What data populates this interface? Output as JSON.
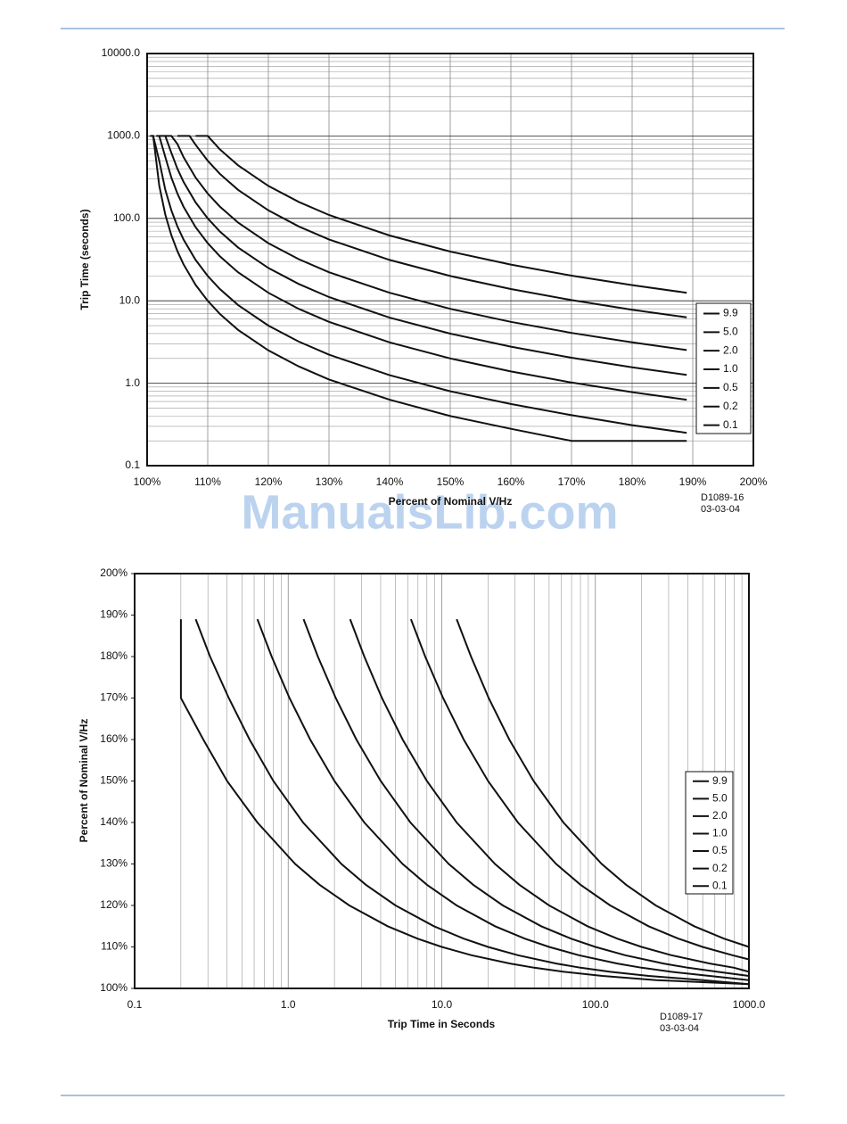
{
  "watermark": "ManualsLib.com",
  "chart_data": [
    {
      "type": "line",
      "xscale": "linear",
      "yscale": "log",
      "xgrid": true,
      "ygrid": true,
      "minor_grid": true,
      "legend": "right",
      "color": "#111111",
      "xlabel": "Percent of Nominal V/Hz",
      "ylabel": "Trip Time (seconds)",
      "annotations": [
        "D1089-16",
        "03-03-04"
      ],
      "xlim": [
        100,
        200
      ],
      "xticks": [
        {
          "value": 100,
          "label": "100%"
        },
        {
          "value": 110,
          "label": "110%"
        },
        {
          "value": 120,
          "label": "120%"
        },
        {
          "value": 130,
          "label": "130%"
        },
        {
          "value": 140,
          "label": "140%"
        },
        {
          "value": 150,
          "label": "150%"
        },
        {
          "value": 160,
          "label": "160%"
        },
        {
          "value": 170,
          "label": "170%"
        },
        {
          "value": 180,
          "label": "180%"
        },
        {
          "value": 190,
          "label": "190%"
        },
        {
          "value": 200,
          "label": "200%"
        }
      ],
      "ylim": [
        0.1,
        10000
      ],
      "yticks": [
        0.1,
        {
          "value": 1,
          "label": "1.0"
        },
        {
          "value": 10,
          "label": "10.0"
        },
        {
          "value": 100,
          "label": "100.0"
        },
        {
          "value": 1000,
          "label": "1000.0"
        },
        {
          "value": 10000,
          "label": "10000.0"
        }
      ],
      "series": [
        {
          "name": "9.9",
          "x": [
            108,
            110,
            112,
            115,
            120,
            125,
            130,
            140,
            150,
            160,
            170,
            180,
            189
          ],
          "values": [
            1000,
            1000,
            687.5,
            440,
            247.5,
            158.4,
            110,
            61.9,
            39.6,
            27.5,
            20.2,
            15.5,
            12.5
          ]
        },
        {
          "name": "5.0",
          "x": [
            105,
            107,
            108,
            110,
            112,
            115,
            120,
            125,
            130,
            140,
            150,
            160,
            170,
            180,
            189
          ],
          "values": [
            1000,
            1000,
            781,
            500,
            347,
            222,
            125,
            80,
            55.6,
            31.3,
            20,
            13.9,
            10.2,
            7.8,
            6.3
          ]
        },
        {
          "name": "2.0",
          "x": [
            103,
            104,
            105,
            106,
            108,
            110,
            112,
            115,
            120,
            125,
            130,
            140,
            150,
            160,
            170,
            180,
            189
          ],
          "values": [
            1000,
            1000,
            800,
            556,
            312.5,
            200,
            138.9,
            88.9,
            50,
            32,
            22.2,
            12.5,
            8,
            5.56,
            4.08,
            3.13,
            2.53
          ]
        },
        {
          "name": "1.0",
          "x": [
            102,
            103,
            104,
            105,
            106,
            108,
            110,
            112,
            115,
            120,
            125,
            130,
            140,
            150,
            160,
            170,
            180,
            189
          ],
          "values": [
            1000,
            1000,
            625,
            400,
            277.8,
            156.3,
            100,
            69.4,
            44.4,
            25,
            16,
            11.1,
            6.25,
            4,
            2.78,
            2.04,
            1.56,
            1.26
          ]
        },
        {
          "name": "0.5",
          "x": [
            101.5,
            102,
            103,
            104,
            105,
            106,
            108,
            110,
            112,
            115,
            120,
            125,
            130,
            140,
            150,
            160,
            170,
            180,
            189
          ],
          "values": [
            1000,
            1000,
            555.6,
            312.5,
            200,
            138.9,
            78.1,
            50,
            34.7,
            22.2,
            12.5,
            8,
            5.56,
            3.13,
            2,
            1.39,
            1.02,
            0.78,
            0.63
          ]
        },
        {
          "name": "0.2",
          "x": [
            100.8,
            101,
            102,
            103,
            104,
            105,
            106,
            108,
            110,
            112,
            115,
            120,
            125,
            130,
            140,
            150,
            160,
            170,
            180,
            189
          ],
          "values": [
            1000,
            1000,
            500,
            222.2,
            125,
            80,
            55.6,
            31.3,
            20,
            13.9,
            8.89,
            5,
            3.2,
            2.22,
            1.25,
            0.8,
            0.56,
            0.41,
            0.31,
            0.25
          ]
        },
        {
          "name": "0.1",
          "x": [
            100.5,
            101,
            102,
            103,
            104,
            105,
            106,
            108,
            110,
            112,
            115,
            120,
            125,
            130,
            140,
            150,
            160,
            170,
            180,
            189
          ],
          "values": [
            1000,
            1000,
            250,
            111.1,
            62.5,
            40,
            27.8,
            15.6,
            10,
            6.94,
            4.44,
            2.5,
            1.6,
            1.11,
            0.63,
            0.4,
            0.28,
            0.2,
            0.2,
            0.2
          ]
        }
      ]
    },
    {
      "type": "line",
      "xscale": "log",
      "yscale": "linear",
      "xgrid": true,
      "ygrid": false,
      "minor_grid": true,
      "legend": "right",
      "color": "#111111",
      "xlabel": "Trip Time in Seconds",
      "ylabel": "Percent of Nominal V/Hz",
      "annotations": [
        "D1089-17",
        "03-03-04"
      ],
      "xlim": [
        0.1,
        1000
      ],
      "xticks": [
        0.1,
        {
          "value": 1,
          "label": "1.0"
        },
        {
          "value": 10,
          "label": "10.0"
        },
        {
          "value": 100,
          "label": "100.0"
        },
        {
          "value": 1000,
          "label": "1000.0"
        }
      ],
      "ylim": [
        100,
        200
      ],
      "yticks": [
        {
          "value": 100,
          "label": "100%"
        },
        {
          "value": 110,
          "label": "110%"
        },
        {
          "value": 120,
          "label": "120%"
        },
        {
          "value": 130,
          "label": "130%"
        },
        {
          "value": 140,
          "label": "140%"
        },
        {
          "value": 150,
          "label": "150%"
        },
        {
          "value": 160,
          "label": "160%"
        },
        {
          "value": 170,
          "label": "170%"
        },
        {
          "value": 180,
          "label": "180%"
        },
        {
          "value": 190,
          "label": "190%"
        },
        {
          "value": 200,
          "label": "200%"
        }
      ],
      "series": [
        {
          "name": "9.9",
          "x": [
            1000,
            687.5,
            440,
            247.5,
            158.4,
            110,
            61.9,
            39.6,
            27.5,
            20.2,
            15.5,
            12.5
          ],
          "values": [
            110,
            112,
            115,
            120,
            125,
            130,
            140,
            150,
            160,
            170,
            180,
            189
          ]
        },
        {
          "name": "5.0",
          "x": [
            1000,
            781,
            500,
            347,
            222,
            125,
            80,
            55.6,
            31.3,
            20,
            13.9,
            10.2,
            7.8,
            6.3
          ],
          "values": [
            107,
            108,
            110,
            112,
            115,
            120,
            125,
            130,
            140,
            150,
            160,
            170,
            180,
            189
          ]
        },
        {
          "name": "2.0",
          "x": [
            1000,
            800,
            556,
            312.5,
            200,
            138.9,
            88.9,
            50,
            32,
            22.2,
            12.5,
            8,
            5.56,
            4.08,
            3.13,
            2.53
          ],
          "values": [
            104,
            105,
            106,
            108,
            110,
            112,
            115,
            120,
            125,
            130,
            140,
            150,
            160,
            170,
            180,
            189
          ]
        },
        {
          "name": "1.0",
          "x": [
            1000,
            625,
            400,
            277.8,
            156.3,
            100,
            69.4,
            44.4,
            25,
            16,
            11.1,
            6.25,
            4,
            2.78,
            2.04,
            1.56,
            1.26
          ],
          "values": [
            103,
            104,
            105,
            106,
            108,
            110,
            112,
            115,
            120,
            125,
            130,
            140,
            150,
            160,
            170,
            180,
            189
          ]
        },
        {
          "name": "0.5",
          "x": [
            1000,
            555.6,
            312.5,
            200,
            138.9,
            78.1,
            50,
            34.7,
            22.2,
            12.5,
            8,
            5.56,
            3.13,
            2,
            1.39,
            1.02,
            0.78,
            0.63
          ],
          "values": [
            102,
            103,
            104,
            105,
            106,
            108,
            110,
            112,
            115,
            120,
            125,
            130,
            140,
            150,
            160,
            170,
            180,
            189
          ]
        },
        {
          "name": "0.2",
          "x": [
            1000,
            500,
            222.2,
            125,
            80,
            55.6,
            31.3,
            20,
            13.9,
            8.89,
            5,
            3.2,
            2.22,
            1.25,
            0.8,
            0.56,
            0.41,
            0.31,
            0.25
          ],
          "values": [
            101,
            102,
            103,
            104,
            105,
            106,
            108,
            110,
            112,
            115,
            120,
            125,
            130,
            140,
            150,
            160,
            170,
            180,
            189
          ]
        },
        {
          "name": "0.1",
          "x": [
            1000,
            250,
            111.1,
            62.5,
            40,
            27.8,
            15.6,
            10,
            6.94,
            4.44,
            2.5,
            1.6,
            1.11,
            0.63,
            0.4,
            0.28,
            0.2,
            0.2,
            0.2
          ],
          "values": [
            101,
            102,
            103,
            104,
            105,
            106,
            108,
            110,
            112,
            115,
            120,
            125,
            130,
            140,
            150,
            160,
            170,
            180,
            189
          ]
        }
      ]
    }
  ]
}
